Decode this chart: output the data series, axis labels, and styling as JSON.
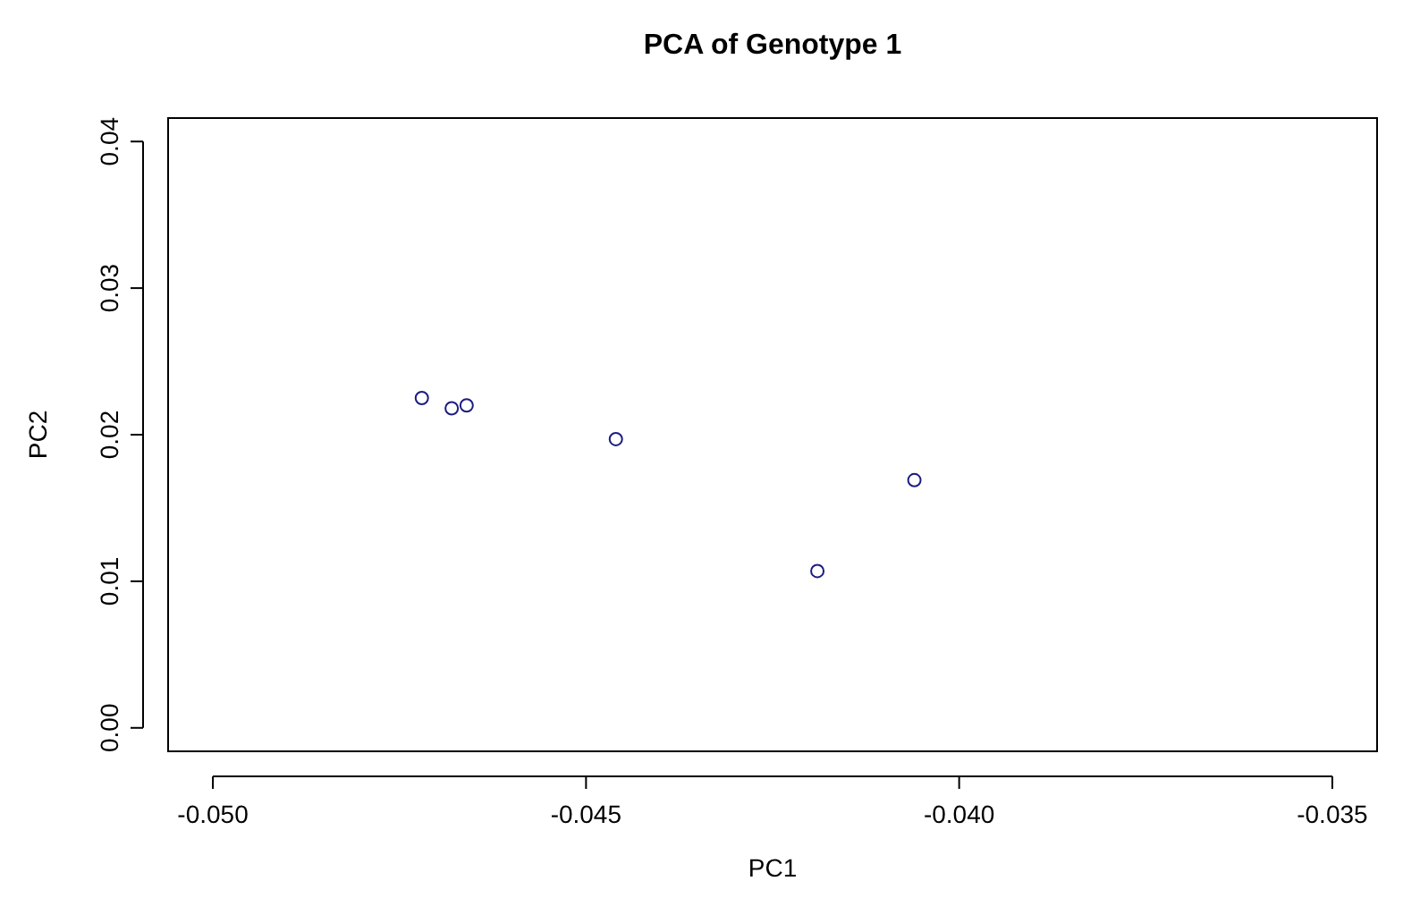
{
  "chart_data": {
    "type": "scatter",
    "title": "PCA of Genotype 1",
    "xlabel": "PC1",
    "ylabel": "PC2",
    "x": [
      -0.0472,
      -0.0468,
      -0.0466,
      -0.0446,
      -0.0419,
      -0.0406
    ],
    "values": [
      0.0225,
      0.0218,
      0.022,
      0.0197,
      0.0107,
      0.0169
    ],
    "color": "#1c1c80",
    "marker": "circle",
    "xlim": [
      -0.0506,
      -0.0344
    ],
    "ylim": [
      -0.0016,
      0.0416
    ],
    "xticks": [
      {
        "value": -0.05,
        "label": "-0.050"
      },
      -0.045,
      {
        "value": -0.04,
        "label": "-0.040"
      },
      -0.035
    ],
    "yticks": [
      {
        "value": 0,
        "label": "0.00"
      },
      {
        "value": 0.01,
        "label": "0.01"
      },
      {
        "value": 0.02,
        "label": "0.02"
      },
      {
        "value": 0.03,
        "label": "0.03"
      },
      {
        "value": 0.04,
        "label": "0.04"
      }
    ]
  }
}
